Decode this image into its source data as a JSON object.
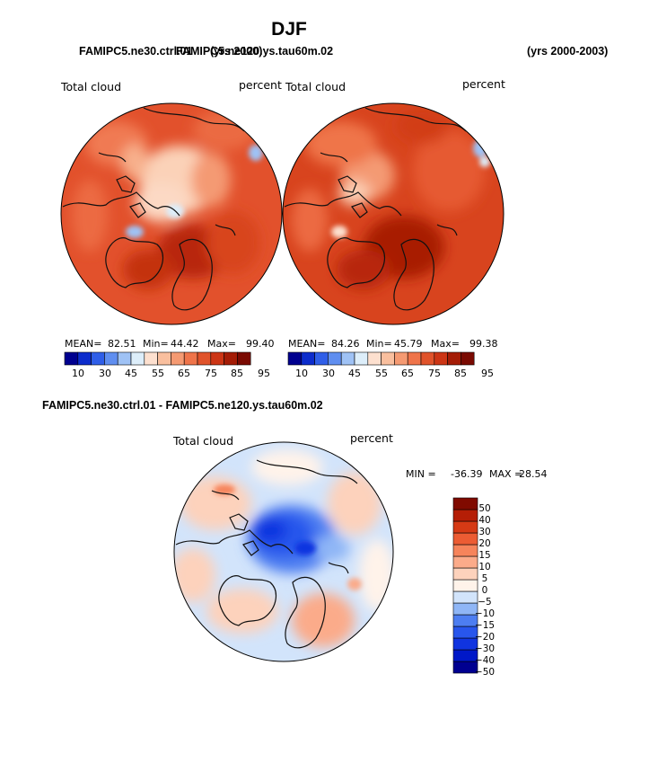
{
  "season_title": "DJF",
  "top_row": {
    "left_case": "FAMIPC5.ne30.ctrl.01",
    "left_years": "(yrs 2000)",
    "right_case": "FAMIPC5.ne120.ys.tau60m.02",
    "right_years": "(yrs 2000-2003)"
  },
  "diff_title": "FAMIPC5.ne30.ctrl.01 - FAMIPC5.ne120.ys.tau60m.02",
  "variable": "Total cloud",
  "units": "percent",
  "colors": {
    "abs_scale": [
      "#00008f",
      "#0c2ccc",
      "#2f5ee8",
      "#5f8ef0",
      "#9fc2f5",
      "#ddeefa",
      "#fde0cf",
      "#f9bf9e",
      "#f59a72",
      "#ef744a",
      "#e0532b",
      "#cc3515",
      "#a41c06",
      "#7a0a02"
    ],
    "diff_scale": [
      "#000090",
      "#0018c8",
      "#1034e0",
      "#2856ec",
      "#4d7ef1",
      "#8fb6f6",
      "#d2e4fb",
      "#fff3ea",
      "#fdd2bc",
      "#fbab8a",
      "#f6845b",
      "#ec5c33",
      "#d63a15",
      "#b51e06",
      "#800a00"
    ]
  },
  "chart_data": [
    {
      "type": "heatmap",
      "projection": "north polar stereographic",
      "title": "FAMIPC5.ne30.ctrl.01 (yrs 2000)",
      "variable": "Total cloud",
      "units": "percent",
      "stats": {
        "mean_label": "MEAN=",
        "mean": "82.51",
        "min_label": "Min=",
        "min": "44.42",
        "max_label": "Max=",
        "max": "99.40"
      },
      "colorbar_ticks": [
        "10",
        "30",
        "45",
        "55",
        "65",
        "75",
        "85",
        "95"
      ]
    },
    {
      "type": "heatmap",
      "projection": "north polar stereographic",
      "title": "FAMIPC5.ne120.ys.tau60m.02 (yrs 2000-2003)",
      "variable": "Total cloud",
      "units": "percent",
      "stats": {
        "mean_label": "MEAN=",
        "mean": "84.26",
        "min_label": "Min=",
        "min": "45.79",
        "max_label": "Max=",
        "max": "99.38"
      },
      "colorbar_ticks": [
        "10",
        "30",
        "45",
        "55",
        "65",
        "75",
        "85",
        "95"
      ]
    },
    {
      "type": "heatmap",
      "projection": "north polar stereographic",
      "title": "FAMIPC5.ne30.ctrl.01 - FAMIPC5.ne120.ys.tau60m.02",
      "variable": "Total cloud",
      "units": "percent",
      "stats": {
        "min_label": "MIN =",
        "min": "-36.39",
        "max_label": "MAX =",
        "max": "28.54"
      },
      "colorbar_ticks": [
        "50",
        "40",
        "30",
        "20",
        "15",
        "10",
        "5",
        "0",
        "−5",
        "−10",
        "−15",
        "−20",
        "−30",
        "−40",
        "−50"
      ]
    }
  ]
}
